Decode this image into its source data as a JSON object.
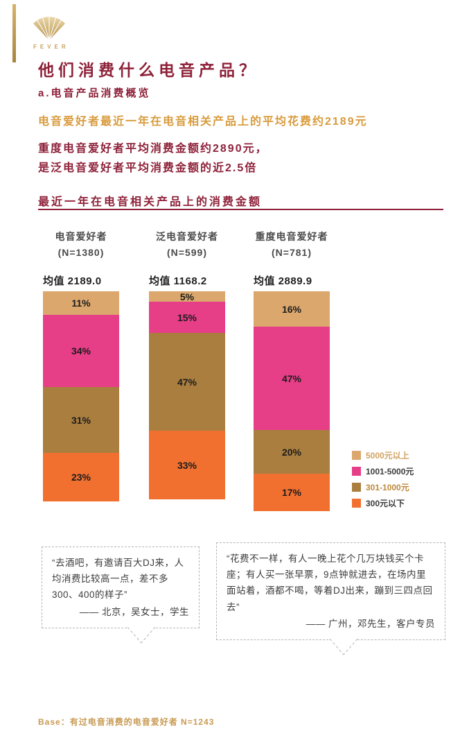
{
  "page": {
    "brand": "FEVER",
    "title": "他们消费什么电音产品？",
    "subtitle": "a.电音产品消费概览",
    "highlight_line": "电音爱好者最近一年在电音相关产品上的平均花费约2189元",
    "stat_line1": "重度电音爱好者平均消费金额约2890元，",
    "stat_line2": "是泛电音爱好者平均消费金额的近2.5倍",
    "base_note": "Base：有过电音消费的电音爱好者 N=1243"
  },
  "chart_data": {
    "type": "bar",
    "stacked": true,
    "orientation": "vertical",
    "title": "最近一年在电音相关产品上的消费金额",
    "unit": "%",
    "value_suffix": "%",
    "legend_position": "right",
    "groups": [
      {
        "label": "电音爱好者",
        "n_label": "(N=1380)",
        "mean_label": "均值 2189.0"
      },
      {
        "label": "泛电音爱好者",
        "n_label": "(N=599)",
        "mean_label": "均值 1168.2"
      },
      {
        "label": "重度电音爱好者",
        "n_label": "(N=781)",
        "mean_label": "均值 2889.9"
      }
    ],
    "series": [
      {
        "name": "5000元以上",
        "color": "#dba76d",
        "label_color": "#d0a261",
        "values": [
          11,
          5,
          16
        ]
      },
      {
        "name": "1001-5000元",
        "color": "#e73e88",
        "label_color": "#3a3a3a",
        "values": [
          34,
          15,
          47
        ]
      },
      {
        "name": "301-1000元",
        "color": "#a97e3f",
        "label_color": "#be883b",
        "values": [
          31,
          47,
          20
        ]
      },
      {
        "name": "300元以下",
        "color": "#f17030",
        "label_color": "#3a3a3a",
        "values": [
          23,
          33,
          17
        ]
      }
    ]
  },
  "quotes": [
    {
      "text": "“去酒吧，有邀请百大DJ来，人均消费比较高一点，差不多300、400的样子”",
      "attribution": "—— 北京，吴女士，学生"
    },
    {
      "text": "“花费不一样，有人一晚上花个几万块钱买个卡座；有人买一张早票，9点钟就进去，在场内里面站着，酒都不喝，等着DJ出来，蹦到三四点回去”",
      "attribution": "—— 广州，邓先生，客户专员"
    }
  ]
}
